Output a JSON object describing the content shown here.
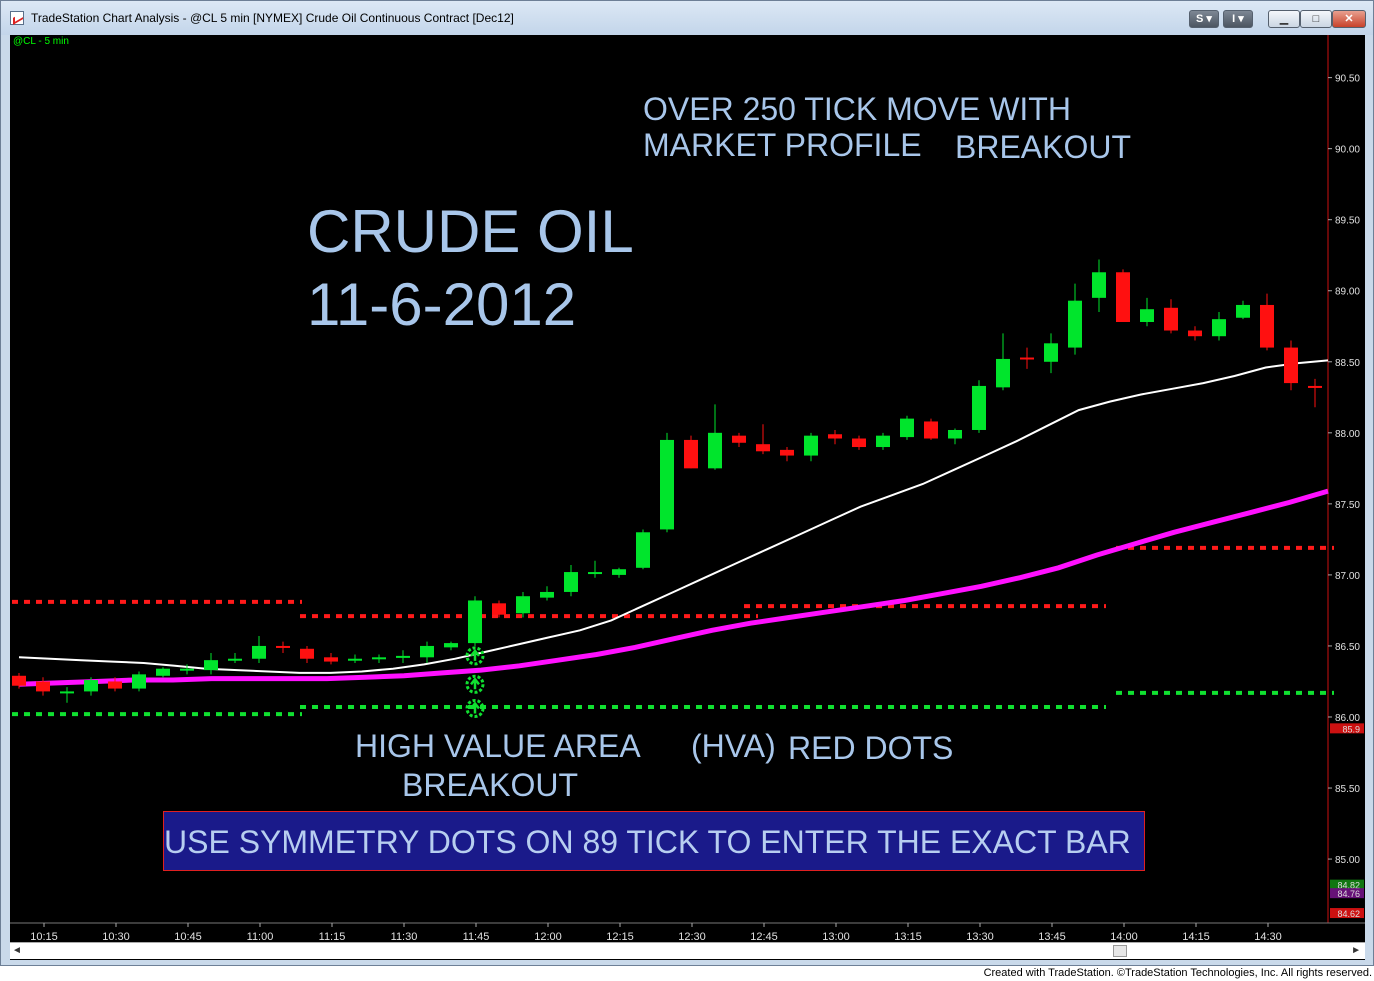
{
  "window": {
    "title": "TradeStation Chart Analysis - @CL 5 min [NYMEX] Crude Oil Continuous Contract [Dec12]",
    "buttons": {
      "s": "S ▾",
      "i": "I ▾",
      "minimize": "▁",
      "maximize": "□",
      "close": "✕"
    }
  },
  "chart_symbol": "@CL - 5 min",
  "annotations": {
    "crude_oil": "CRUDE OIL",
    "date": "11-6-2012",
    "over_1": "OVER 250 TICK MOVE WITH",
    "over_2": "MARKET PROFILE",
    "over_3": "BREAKOUT",
    "hva_1": "HIGH VALUE AREA",
    "hva_2": "(HVA)",
    "hva_3": "RED DOTS",
    "hva_4": "BREAKOUT",
    "box": "USE SYMMETRY DOTS ON 89 TICK TO ENTER THE EXACT BAR"
  },
  "footer": {
    "credit": "Created with TradeStation. ©TradeStation Technologies, Inc. All rights reserved."
  },
  "colors": {
    "up": "#00e52c",
    "down": "#ff1010",
    "ma_fast": "#ffffff",
    "ma_slow": "#ff10ff",
    "axis_text": "#e0e0e0",
    "scale_line": "#cc1111"
  },
  "chart_data": {
    "type": "candlestick",
    "ylim": [
      84.55,
      90.8
    ],
    "yticks": [
      "85.00",
      "85.50",
      "86.00",
      "86.50",
      "87.00",
      "87.50",
      "88.00",
      "88.50",
      "89.00",
      "89.50",
      "90.00",
      "90.50"
    ],
    "xticks": [
      "10:15",
      "10:30",
      "10:45",
      "11:00",
      "11:15",
      "11:30",
      "11:45",
      "12:00",
      "12:15",
      "12:30",
      "12:45",
      "13:00",
      "13:15",
      "13:30",
      "13:45",
      "14:00",
      "14:15",
      "14:30"
    ],
    "price_markers": [
      {
        "label": "85.9",
        "value": 85.92,
        "color": "#cc1111"
      },
      {
        "label": "84.82",
        "value": 84.82,
        "color": "#117711"
      },
      {
        "label": "84.76",
        "value": 84.76,
        "color": "#661177"
      },
      {
        "label": "84.62",
        "value": 84.62,
        "color": "#cc1111"
      }
    ],
    "candles": [
      {
        "o": 86.29,
        "h": 86.31,
        "l": 86.2,
        "c": 86.22
      },
      {
        "o": 86.25,
        "h": 86.28,
        "l": 86.15,
        "c": 86.18
      },
      {
        "o": 86.17,
        "h": 86.21,
        "l": 86.1,
        "c": 86.18
      },
      {
        "o": 86.18,
        "h": 86.28,
        "l": 86.15,
        "c": 86.26
      },
      {
        "o": 86.25,
        "h": 86.28,
        "l": 86.18,
        "c": 86.2
      },
      {
        "o": 86.2,
        "h": 86.32,
        "l": 86.18,
        "c": 86.3
      },
      {
        "o": 86.29,
        "h": 86.35,
        "l": 86.28,
        "c": 86.34
      },
      {
        "o": 86.33,
        "h": 86.37,
        "l": 86.3,
        "c": 86.34
      },
      {
        "o": 86.33,
        "h": 86.45,
        "l": 86.3,
        "c": 86.4
      },
      {
        "o": 86.4,
        "h": 86.45,
        "l": 86.38,
        "c": 86.41
      },
      {
        "o": 86.41,
        "h": 86.57,
        "l": 86.38,
        "c": 86.5
      },
      {
        "o": 86.5,
        "h": 86.53,
        "l": 86.45,
        "c": 86.49
      },
      {
        "o": 86.48,
        "h": 86.5,
        "l": 86.38,
        "c": 86.41
      },
      {
        "o": 86.42,
        "h": 86.45,
        "l": 86.37,
        "c": 86.39
      },
      {
        "o": 86.41,
        "h": 86.44,
        "l": 86.38,
        "c": 86.41
      },
      {
        "o": 86.41,
        "h": 86.44,
        "l": 86.38,
        "c": 86.42
      },
      {
        "o": 86.42,
        "h": 86.47,
        "l": 86.38,
        "c": 86.43
      },
      {
        "o": 86.42,
        "h": 86.53,
        "l": 86.38,
        "c": 86.5
      },
      {
        "o": 86.49,
        "h": 86.53,
        "l": 86.47,
        "c": 86.52
      },
      {
        "o": 86.52,
        "h": 86.85,
        "l": 86.5,
        "c": 86.82
      },
      {
        "o": 86.8,
        "h": 86.82,
        "l": 86.7,
        "c": 86.72
      },
      {
        "o": 86.73,
        "h": 86.88,
        "l": 86.7,
        "c": 86.85
      },
      {
        "o": 86.84,
        "h": 86.92,
        "l": 86.82,
        "c": 86.88
      },
      {
        "o": 86.88,
        "h": 87.07,
        "l": 86.85,
        "c": 87.02
      },
      {
        "o": 87.02,
        "h": 87.1,
        "l": 86.98,
        "c": 87.02
      },
      {
        "o": 87.0,
        "h": 87.05,
        "l": 86.98,
        "c": 87.04
      },
      {
        "o": 87.05,
        "h": 87.32,
        "l": 87.04,
        "c": 87.3
      },
      {
        "o": 87.32,
        "h": 88.0,
        "l": 87.3,
        "c": 87.95
      },
      {
        "o": 87.95,
        "h": 87.98,
        "l": 87.75,
        "c": 87.75
      },
      {
        "o": 87.75,
        "h": 88.2,
        "l": 87.74,
        "c": 88.0
      },
      {
        "o": 87.98,
        "h": 88.0,
        "l": 87.9,
        "c": 87.93
      },
      {
        "o": 87.92,
        "h": 88.06,
        "l": 87.85,
        "c": 87.87
      },
      {
        "o": 87.88,
        "h": 87.9,
        "l": 87.8,
        "c": 87.84
      },
      {
        "o": 87.84,
        "h": 88.0,
        "l": 87.8,
        "c": 87.98
      },
      {
        "o": 87.99,
        "h": 88.02,
        "l": 87.92,
        "c": 87.96
      },
      {
        "o": 87.96,
        "h": 87.98,
        "l": 87.88,
        "c": 87.9
      },
      {
        "o": 87.9,
        "h": 88.0,
        "l": 87.88,
        "c": 87.98
      },
      {
        "o": 87.97,
        "h": 88.12,
        "l": 87.95,
        "c": 88.1
      },
      {
        "o": 88.08,
        "h": 88.1,
        "l": 87.95,
        "c": 87.96
      },
      {
        "o": 87.96,
        "h": 88.03,
        "l": 87.92,
        "c": 88.02
      },
      {
        "o": 88.02,
        "h": 88.37,
        "l": 88.0,
        "c": 88.33
      },
      {
        "o": 88.32,
        "h": 88.7,
        "l": 88.3,
        "c": 88.52
      },
      {
        "o": 88.53,
        "h": 88.6,
        "l": 88.45,
        "c": 88.52
      },
      {
        "o": 88.5,
        "h": 88.7,
        "l": 88.42,
        "c": 88.63
      },
      {
        "o": 88.6,
        "h": 89.05,
        "l": 88.55,
        "c": 88.93
      },
      {
        "o": 88.95,
        "h": 89.22,
        "l": 88.85,
        "c": 89.13
      },
      {
        "o": 89.13,
        "h": 89.15,
        "l": 88.78,
        "c": 88.78
      },
      {
        "o": 88.78,
        "h": 88.95,
        "l": 88.75,
        "c": 88.87
      },
      {
        "o": 88.88,
        "h": 88.94,
        "l": 88.7,
        "c": 88.72
      },
      {
        "o": 88.72,
        "h": 88.75,
        "l": 88.65,
        "c": 88.68
      },
      {
        "o": 88.68,
        "h": 88.85,
        "l": 88.65,
        "c": 88.8
      },
      {
        "o": 88.81,
        "h": 88.93,
        "l": 88.8,
        "c": 88.9
      },
      {
        "o": 88.9,
        "h": 88.98,
        "l": 88.58,
        "c": 88.6
      },
      {
        "o": 88.6,
        "h": 88.65,
        "l": 88.3,
        "c": 88.35
      },
      {
        "o": 88.33,
        "h": 88.38,
        "l": 88.18,
        "c": 88.32
      }
    ],
    "series": [
      {
        "values": [
          86.42,
          86.41,
          86.4,
          86.39,
          86.38,
          86.36,
          86.34,
          86.33,
          86.32,
          86.31,
          86.31,
          86.32,
          86.34,
          86.37,
          86.41,
          86.46,
          86.51,
          86.56,
          86.61,
          86.68,
          86.78,
          86.88,
          86.98,
          87.08,
          87.18,
          87.28,
          87.38,
          87.48,
          87.56,
          87.64,
          87.74,
          87.84,
          87.94,
          88.05,
          88.16,
          88.22,
          88.27,
          88.31,
          88.35,
          88.4,
          88.46,
          88.49,
          88.51
        ]
      },
      {
        "values": [
          86.23,
          86.24,
          86.25,
          86.26,
          86.26,
          86.27,
          86.27,
          86.27,
          86.27,
          86.28,
          86.29,
          86.31,
          86.33,
          86.36,
          86.4,
          86.44,
          86.49,
          86.55,
          86.61,
          86.66,
          86.7,
          86.74,
          86.78,
          86.82,
          86.87,
          86.92,
          86.98,
          87.05,
          87.14,
          87.22,
          87.3,
          87.37,
          87.44,
          87.51,
          87.59
        ]
      }
    ],
    "levels": [
      {
        "value": 86.81,
        "from": 0,
        "to": 11.5,
        "color": "red"
      },
      {
        "value": 86.71,
        "from": 12,
        "to": 30.5,
        "color": "red"
      },
      {
        "value": 86.78,
        "from": 30.5,
        "to": 45,
        "color": "red"
      },
      {
        "value": 87.19,
        "from": 46,
        "to": 54.5,
        "color": "red"
      },
      {
        "value": 86.02,
        "from": 0,
        "to": 11.5,
        "color": "green"
      },
      {
        "value": 86.07,
        "from": 12,
        "to": 45,
        "color": "green"
      },
      {
        "value": 86.17,
        "from": 46,
        "to": 54.5,
        "color": "green"
      }
    ],
    "symmetry_dots": [
      86.43,
      86.23,
      86.06
    ]
  }
}
